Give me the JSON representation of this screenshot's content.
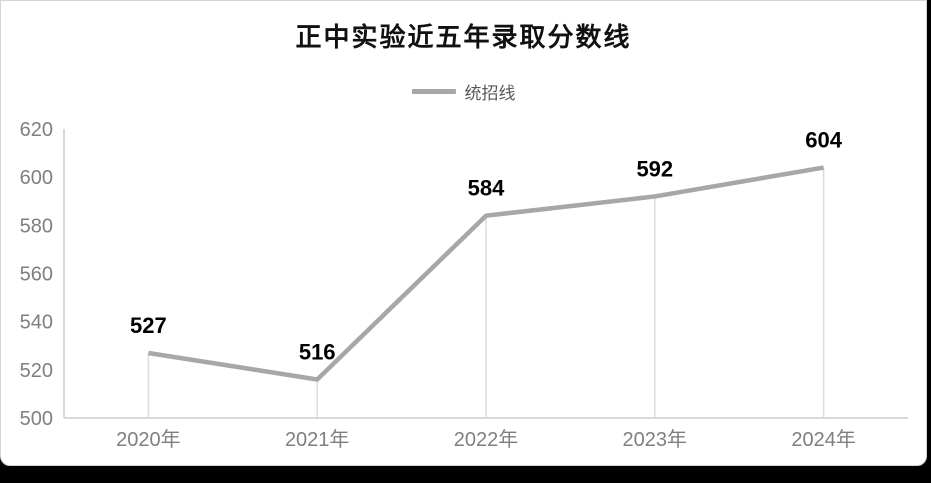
{
  "page": {
    "background": "#000000",
    "card_background": "#ffffff",
    "card_border": "#d5d5d5"
  },
  "chart_data": {
    "type": "line",
    "title": "正中实验近五年录取分数线",
    "categories": [
      "2020年",
      "2021年",
      "2022年",
      "2023年",
      "2024年"
    ],
    "series": [
      {
        "name": "统招线",
        "values": [
          527,
          516,
          584,
          592,
          604
        ]
      }
    ],
    "data_labels": [
      "527",
      "516",
      "584",
      "592",
      "604"
    ],
    "xlabel": "",
    "ylabel": "",
    "ylim": [
      500,
      620
    ],
    "yticks": [
      500,
      520,
      540,
      560,
      580,
      600,
      620
    ],
    "grid": false,
    "legend_position": "top",
    "markers": false,
    "drop_lines": true,
    "colors": {
      "line": "#a9a6a4",
      "axis": "#d9d9d9",
      "drop_line": "#dcdcdc",
      "tick_text": "#7f7f7f",
      "data_label": "#000000",
      "title_text": "#111111",
      "legend_text": "#595959"
    }
  }
}
